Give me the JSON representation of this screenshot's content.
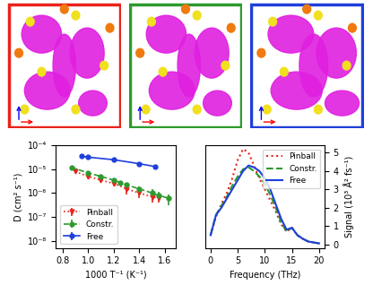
{
  "chart_data": [
    {
      "type": "line",
      "log": "y",
      "legend": "lower left",
      "x_label": "1000 T⁻¹ (K⁻¹)",
      "y_label": "D (cm² s⁻¹)",
      "xlim": [
        0.75,
        1.68
      ],
      "xticks": [
        0.8,
        1.0,
        1.2,
        1.4,
        1.6
      ],
      "ylim": [
        5e-09,
        0.0001
      ],
      "yticks": [
        {
          "value": 1e-08,
          "label": "10⁻⁸"
        },
        {
          "value": 1e-07,
          "label": "10⁻⁷"
        },
        {
          "value": 1e-06,
          "label": "10⁻⁶"
        },
        {
          "value": 1e-05,
          "label": "10⁻⁵"
        },
        {
          "value": 0.0001,
          "label": "10⁻⁴"
        }
      ],
      "series": [
        {
          "name": "Pinball",
          "color": "#e8231b",
          "marker": "triangle",
          "line_style": "dotted",
          "x": [
            0.9,
            1.0,
            1.1,
            1.2,
            1.3,
            1.4,
            1.5,
            1.55
          ],
          "values": [
            8e-06,
            5e-06,
            3.5e-06,
            2.5e-06,
            1.5e-06,
            1e-06,
            7e-07,
            6e-07
          ],
          "errors": [
            1e-06,
            8e-07,
            6e-07,
            5e-07,
            6e-07,
            4e-07,
            3e-07,
            2e-07
          ]
        },
        {
          "name": "Constr.",
          "color": "#2e9a2e",
          "marker": "circle",
          "line_style": "dashed",
          "x": [
            0.87,
            1.0,
            1.1,
            1.2,
            1.25,
            1.3,
            1.4,
            1.5,
            1.55,
            1.63
          ],
          "values": [
            1.2e-05,
            7e-06,
            5e-06,
            3.5e-06,
            2.8e-06,
            2.2e-06,
            1.5e-06,
            1e-06,
            8e-07,
            6e-07
          ],
          "errors": [
            1e-06,
            8e-07,
            6e-07,
            5e-07,
            5e-07,
            4e-07,
            4e-07,
            5e-07,
            3e-07,
            3e-07
          ]
        },
        {
          "name": "Free",
          "color": "#1f3fdb",
          "marker": "circle",
          "line_style": "solid",
          "x": [
            0.95,
            1.0,
            1.2,
            1.4,
            1.52
          ],
          "values": [
            3.5e-05,
            3.2e-05,
            2.5e-05,
            1.7e-05,
            1.3e-05
          ],
          "errors": [
            0,
            0,
            0,
            0,
            0
          ]
        }
      ]
    },
    {
      "type": "line",
      "legend": "upper right",
      "x_label": "Frequency (THz)",
      "y_label": "Signal (10³ Å² fs⁻¹)",
      "xlim": [
        -1,
        21
      ],
      "xticks": [
        0,
        5,
        10,
        15,
        20
      ],
      "ylim": [
        -0.2,
        5.4
      ],
      "yticks": [
        0,
        1,
        2,
        3,
        4,
        5
      ],
      "x": [
        0,
        1,
        2,
        3,
        4,
        5,
        6,
        7,
        8,
        9,
        10,
        11,
        12,
        13,
        14,
        15,
        16,
        17,
        18,
        19,
        20
      ],
      "series": [
        {
          "name": "Pinball",
          "color": "#e8231b",
          "line_style": "dotted",
          "values": [
            0.5,
            1.5,
            2.2,
            2.8,
            3.6,
            4.6,
            5.2,
            5.0,
            4.3,
            3.6,
            3.0,
            2.4,
            1.8,
            1.1,
            0.7,
            0.9,
            0.5,
            0.3,
            0.15,
            0.1,
            0.05
          ]
        },
        {
          "name": "Constr.",
          "color": "#2e9a2e",
          "line_style": "dashed",
          "values": [
            0.5,
            1.6,
            2.1,
            2.6,
            3.2,
            3.7,
            4.1,
            4.2,
            4.0,
            3.7,
            3.3,
            2.7,
            2.0,
            1.2,
            0.7,
            0.9,
            0.5,
            0.3,
            0.15,
            0.1,
            0.05
          ]
        },
        {
          "name": "Free",
          "color": "#1f3fdb",
          "line_style": "solid",
          "values": [
            0.5,
            1.6,
            2.0,
            2.5,
            3.0,
            3.5,
            4.0,
            4.3,
            4.2,
            4.0,
            3.6,
            3.0,
            2.2,
            1.4,
            0.8,
            0.9,
            0.5,
            0.3,
            0.15,
            0.1,
            0.05
          ]
        }
      ]
    }
  ]
}
